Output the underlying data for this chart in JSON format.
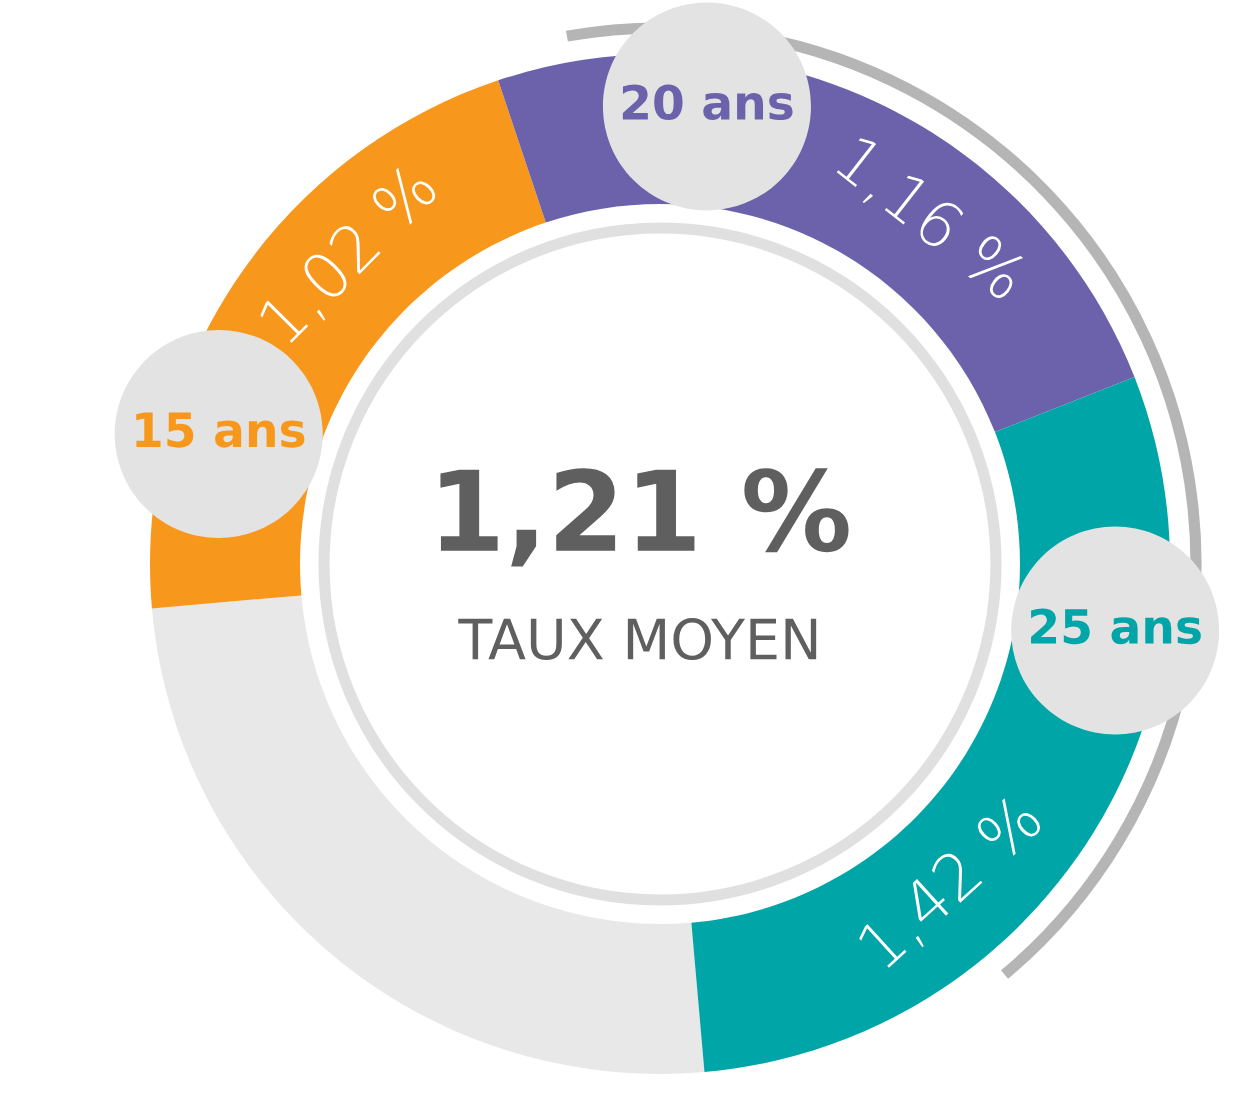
{
  "chart_data": {
    "type": "other",
    "title": "1,21 %",
    "subtitle": "TAUX MOYEN",
    "categories": [
      "15 ans",
      "20 ans",
      "25 ans"
    ],
    "values": [
      1.02,
      1.16,
      1.42
    ],
    "value_labels": [
      "1,02 %",
      "1,16 %",
      "1,42 %"
    ],
    "colors": [
      "#f7981d",
      "#6c62ab",
      "#00a5a8"
    ]
  }
}
